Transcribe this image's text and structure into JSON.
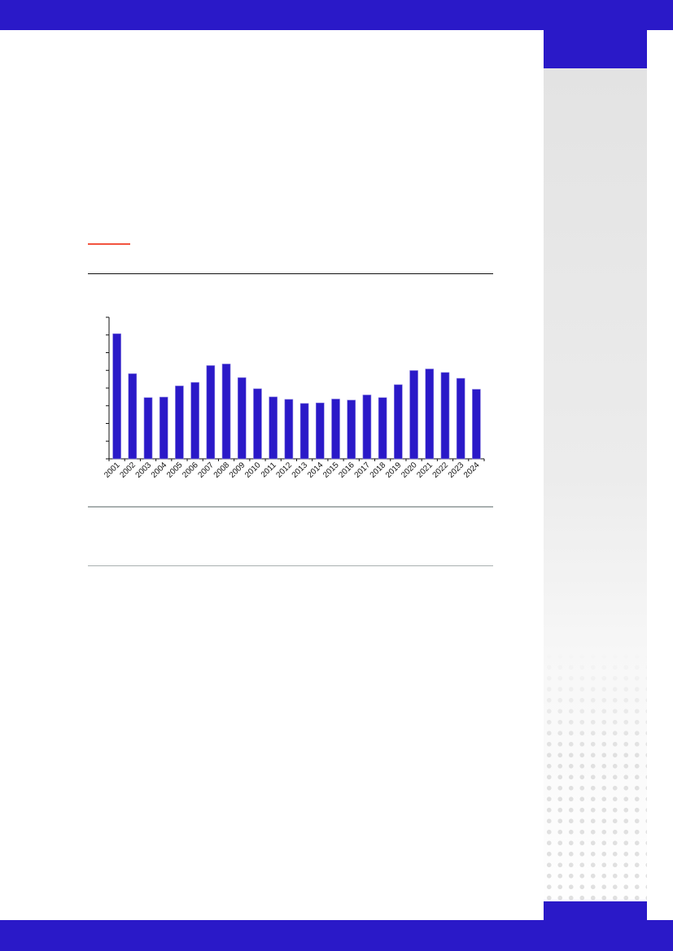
{
  "colors": {
    "brand": "#2a19c8",
    "accent": "#f2533f",
    "sidebar": "#e2e2e2"
  },
  "chart_data": {
    "type": "bar",
    "title": "",
    "xlabel": "",
    "ylabel": "",
    "categories": [
      "2001",
      "2002",
      "2003",
      "2004",
      "2005",
      "2006",
      "2007",
      "2008",
      "2009",
      "2010",
      "2011",
      "2012",
      "2013",
      "2014",
      "2015",
      "2016",
      "2017",
      "2018",
      "2019",
      "2020",
      "2021",
      "2022",
      "2023",
      "2024"
    ],
    "values": [
      7.07,
      4.81,
      3.46,
      3.49,
      4.12,
      4.32,
      5.27,
      5.36,
      4.59,
      3.96,
      3.5,
      3.36,
      3.13,
      3.16,
      3.38,
      3.32,
      3.61,
      3.46,
      4.19,
      4.99,
      5.08,
      4.88,
      4.55,
      3.93
    ],
    "ylim": [
      0,
      8
    ],
    "y_tick_labels_shown": false,
    "grid": false,
    "bar_color": "#2a19c8"
  }
}
